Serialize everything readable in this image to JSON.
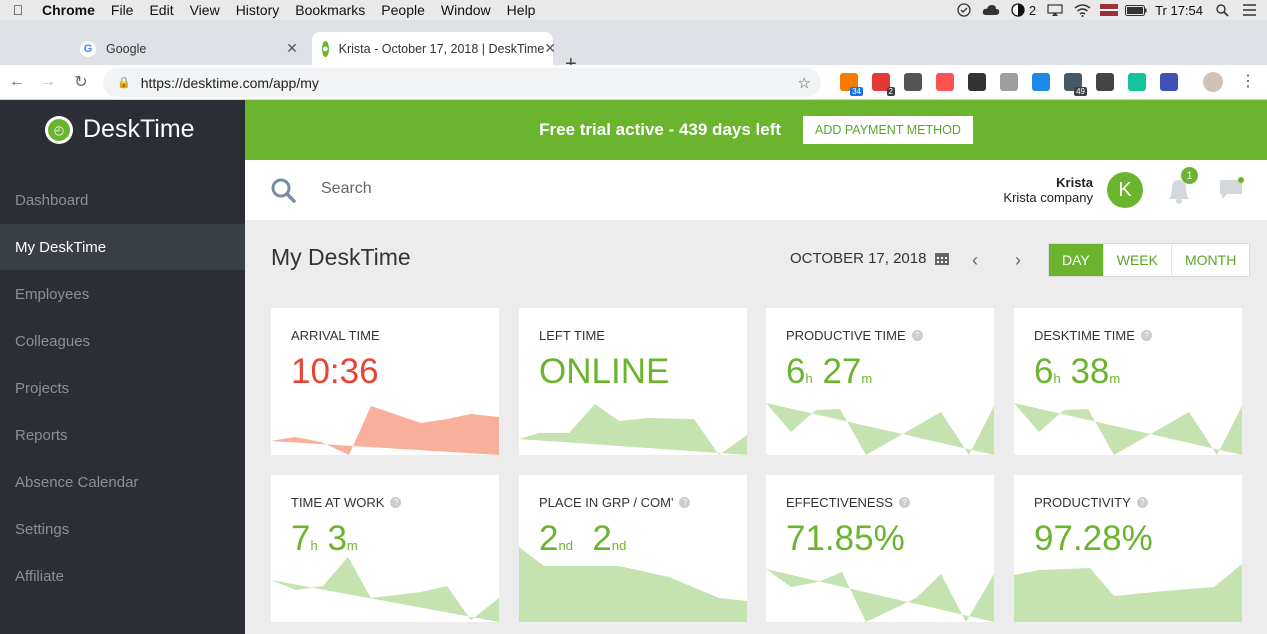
{
  "menubar": {
    "app": "Chrome",
    "items": [
      "File",
      "Edit",
      "View",
      "History",
      "Bookmarks",
      "People",
      "Window",
      "Help"
    ],
    "battery_num": "2",
    "clock": "Tr 17:54"
  },
  "tabs": [
    {
      "title": "Google",
      "active": false
    },
    {
      "title": "Krista - October 17, 2018 | DeskTime",
      "active": true
    }
  ],
  "omnibox": {
    "url": "https://desktime.com/app/my"
  },
  "extensions": [
    {
      "icon": "clipper-icon",
      "badge": "34",
      "color": "#f57c00"
    },
    {
      "icon": "todo-icon",
      "badge": "2",
      "color": "#e53935"
    },
    {
      "icon": "recycle-icon",
      "badge": "",
      "color": "#555555"
    },
    {
      "icon": "cast-icon",
      "badge": "",
      "color": "#ff5252"
    },
    {
      "icon": "crown-icon",
      "badge": "",
      "color": "#333333"
    },
    {
      "icon": "ball-icon",
      "badge": "",
      "color": "#9e9e9e"
    },
    {
      "icon": "squares-icon",
      "badge": "",
      "color": "#1e88e5"
    },
    {
      "icon": "calendar-icon",
      "badge": "49",
      "color": "#455a64"
    },
    {
      "icon": "pocket-icon",
      "badge": "",
      "color": "#444444"
    },
    {
      "icon": "grammarly-icon",
      "badge": "",
      "color": "#15c39a"
    },
    {
      "icon": "search-ext-icon",
      "badge": "",
      "color": "#3f51b5"
    }
  ],
  "sidebar": {
    "brand": "DeskTime",
    "items": [
      {
        "label": "Dashboard",
        "active": false
      },
      {
        "label": "My DeskTime",
        "active": true
      },
      {
        "label": "Employees",
        "active": false
      },
      {
        "label": "Colleagues",
        "active": false
      },
      {
        "label": "Projects",
        "active": false
      },
      {
        "label": "Reports",
        "active": false
      },
      {
        "label": "Absence Calendar",
        "active": false
      },
      {
        "label": "Settings",
        "active": false
      },
      {
        "label": "Affiliate",
        "active": false
      }
    ]
  },
  "banner": {
    "text": "Free trial active - 439 days left",
    "button": "ADD PAYMENT METHOD"
  },
  "topbar": {
    "search_placeholder": "Search",
    "user_name": "Krista",
    "company": "Krista company",
    "avatar_letter": "K",
    "notifications": "1"
  },
  "page": {
    "title": "My DeskTime",
    "date": "OCTOBER 17, 2018",
    "views": [
      "DAY",
      "WEEK",
      "MONTH"
    ],
    "active_view": "DAY"
  },
  "colors": {
    "accent": "#6ab42e",
    "arrival_red": "#ea4335",
    "arrival_fill": "#f9b09a",
    "spark_fill": "#c5e3b0"
  },
  "cards": [
    {
      "label": "ARRIVAL TIME",
      "value": "10:36",
      "help": false
    },
    {
      "label": "LEFT TIME",
      "value": "ONLINE",
      "help": false
    },
    {
      "label": "PRODUCTIVE TIME",
      "value_h": "6",
      "unit_h": "h",
      "value_m": "27",
      "unit_m": "m",
      "help": true
    },
    {
      "label": "DESKTIME TIME",
      "value_h": "6",
      "unit_h": "h",
      "value_m": "38",
      "unit_m": "m",
      "help": true
    },
    {
      "label": "TIME AT WORK",
      "value_h": "7",
      "unit_h": "h",
      "value_m": "3",
      "unit_m": "m",
      "help": true
    },
    {
      "label": "PLACE IN GRP / COM'",
      "value_h": "2",
      "unit_h": "nd",
      "value_m": "2",
      "unit_m": "nd",
      "help": true
    },
    {
      "label": "EFFECTIVENESS",
      "value": "71.85%",
      "help": true
    },
    {
      "label": "PRODUCTIVITY",
      "value": "97.28%",
      "help": true
    }
  ]
}
